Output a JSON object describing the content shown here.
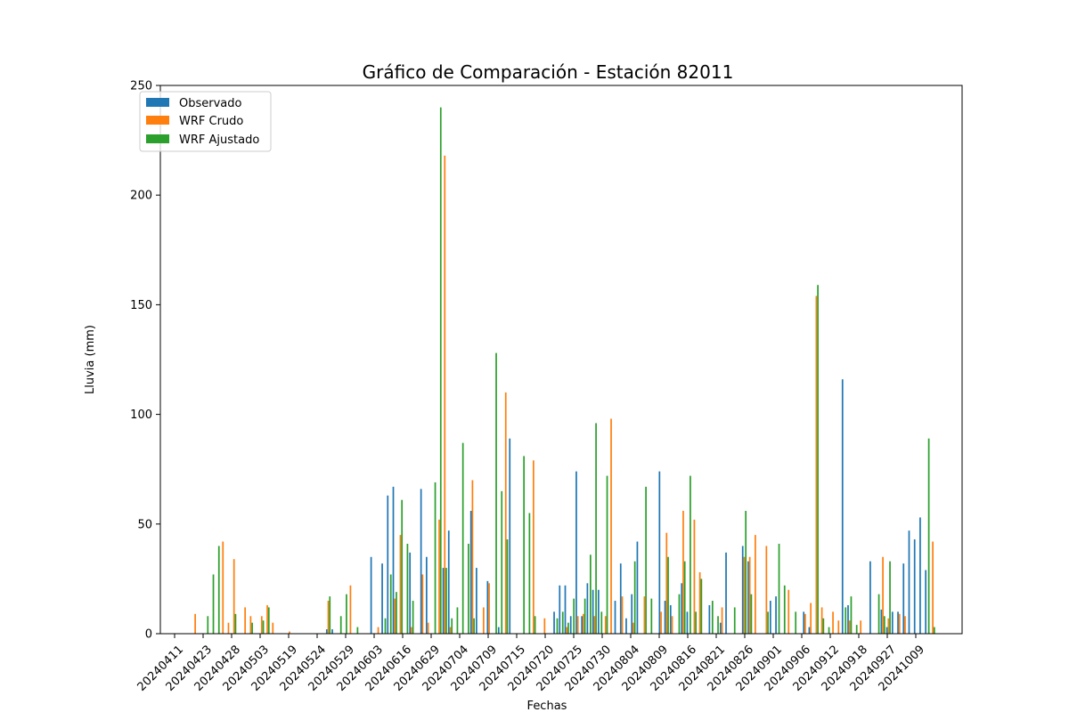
{
  "chart_data": {
    "type": "bar",
    "title": "Gráfico de Comparación - Estación 82011",
    "xlabel": "Fechas",
    "ylabel": "Lluvia (mm)",
    "ylim": [
      0,
      250
    ],
    "yticks": [
      0,
      50,
      100,
      150,
      200,
      250
    ],
    "xticks": [
      "20240411",
      "20240423",
      "20240428",
      "20240503",
      "20240519",
      "20240524",
      "20240529",
      "20240603",
      "20240616",
      "20240629",
      "20240704",
      "20240709",
      "20240715",
      "20240720",
      "20240725",
      "20240730",
      "20240804",
      "20240809",
      "20240816",
      "20240821",
      "20240826",
      "20240901",
      "20240906",
      "20240912",
      "20240918",
      "20240927",
      "20241009"
    ],
    "legend_position": "upper-left",
    "colors": {
      "Observado": "#1f77b4",
      "WRF Crudo": "#ff7f0e",
      "WRF Ajustado": "#2ca02c"
    },
    "series": [
      {
        "name": "Observado",
        "values": [
          0,
          0,
          0,
          0,
          0,
          0,
          0,
          0,
          0,
          0,
          0,
          0,
          0,
          0,
          0,
          0,
          0,
          0,
          0,
          0,
          0,
          0,
          0,
          0,
          2,
          2,
          0,
          0,
          0,
          0,
          0,
          0,
          35,
          0,
          32,
          63,
          67,
          0,
          0,
          37,
          0,
          66,
          35,
          0,
          0,
          30,
          47,
          0,
          0,
          0,
          56,
          30,
          0,
          24,
          0,
          3,
          0,
          89,
          0,
          0,
          0,
          0,
          0,
          0,
          0,
          10,
          22,
          22,
          8,
          74,
          8,
          23,
          20,
          20,
          0,
          0,
          15,
          32,
          7,
          18,
          42,
          0,
          0,
          0,
          74,
          15,
          13,
          0,
          23,
          10,
          0,
          0,
          0,
          13,
          0,
          5,
          37,
          0,
          0,
          40,
          33,
          0,
          0,
          0,
          15,
          17,
          0,
          0,
          0,
          0,
          10,
          3,
          0,
          0,
          0,
          0,
          0,
          116,
          13,
          0,
          0,
          0,
          33,
          0,
          11,
          3,
          10,
          10,
          32,
          47,
          43,
          53,
          29
        ]
      },
      {
        "name": "WRF Crudo",
        "values": [
          9,
          0,
          0,
          0,
          0,
          42,
          5,
          34,
          0,
          12,
          8,
          0,
          8,
          13,
          5,
          0,
          0,
          1,
          0,
          0,
          0,
          0,
          0,
          0,
          15,
          0,
          0,
          0,
          22,
          0,
          0,
          0,
          0,
          3,
          0,
          0,
          16,
          45,
          0,
          3,
          0,
          27,
          5,
          0,
          52,
          218,
          3,
          0,
          0,
          0,
          70,
          0,
          12,
          23,
          0,
          0,
          110,
          0,
          0,
          0,
          0,
          79,
          0,
          7,
          0,
          0,
          0,
          3,
          0,
          8,
          9,
          0,
          8,
          0,
          8,
          98,
          0,
          17,
          0,
          5,
          0,
          17,
          0,
          0,
          10,
          46,
          8,
          0,
          56,
          0,
          52,
          28,
          0,
          0,
          0,
          12,
          0,
          0,
          0,
          35,
          35,
          45,
          0,
          40,
          0,
          0,
          0,
          20,
          0,
          0,
          9,
          14,
          154,
          12,
          0,
          10,
          6,
          0,
          6,
          0,
          6,
          0,
          0,
          0,
          35,
          7,
          0,
          9,
          8,
          0,
          0,
          0,
          0,
          42
        ]
      },
      {
        "name": "WRF Ajustado",
        "values": [
          0,
          0,
          8,
          27,
          40,
          0,
          0,
          9,
          0,
          0,
          5,
          0,
          6,
          12,
          0,
          0,
          0,
          0,
          0,
          0,
          0,
          0,
          0,
          0,
          17,
          0,
          8,
          18,
          0,
          3,
          0,
          0,
          0,
          0,
          7,
          27,
          19,
          61,
          41,
          15,
          0,
          0,
          0,
          69,
          240,
          30,
          7,
          12,
          87,
          41,
          7,
          0,
          0,
          0,
          128,
          65,
          43,
          0,
          0,
          81,
          55,
          8,
          0,
          0,
          0,
          7,
          10,
          5,
          16,
          0,
          16,
          36,
          96,
          10,
          72,
          0,
          0,
          0,
          0,
          33,
          0,
          67,
          16,
          0,
          0,
          35,
          0,
          18,
          33,
          72,
          10,
          25,
          0,
          15,
          8,
          0,
          0,
          12,
          0,
          56,
          18,
          0,
          0,
          10,
          0,
          41,
          22,
          0,
          10,
          0,
          0,
          0,
          159,
          7,
          3,
          0,
          0,
          12,
          17,
          4,
          0,
          0,
          0,
          18,
          8,
          33,
          0,
          0,
          0,
          0,
          0,
          0,
          89,
          3
        ]
      }
    ]
  }
}
